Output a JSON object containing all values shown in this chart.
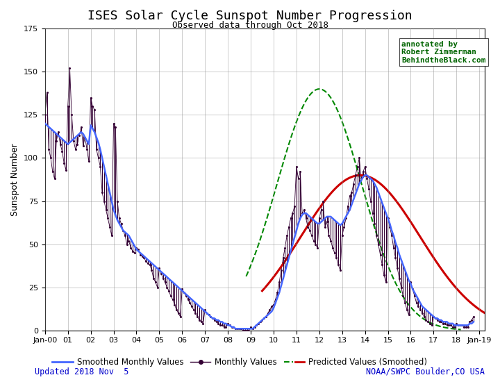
{
  "title": "ISES Solar Cycle Sunspot Number Progression",
  "subtitle": "Observed data through Oct 2018",
  "ylabel": "Sunspot Number",
  "ylim": [
    0,
    175
  ],
  "yticks": [
    0,
    25,
    50,
    75,
    100,
    125,
    150,
    175
  ],
  "annotation": "annotated by\nRobert Zimmerman\nBehindtheBlack.com",
  "annotation_color": "#006400",
  "footer_left": "Updated 2018 Nov  5",
  "footer_right": "NOAA/SWPC Boulder,CO USA",
  "footer_color": "#0000cc",
  "background_color": "#ffffff",
  "grid_color": "#888888",
  "smoothed_color": "#4466ff",
  "monthly_color": "#330033",
  "predicted_green_color": "#008800",
  "predicted_red_color": "#cc0000",
  "smoothed_linewidth": 1.8,
  "predicted_linewidth": 2.2,
  "title_fontsize": 13,
  "subtitle_fontsize": 9,
  "label_fontsize": 9,
  "tick_fontsize": 8,
  "x_start": 2000.0,
  "x_end": 2019.25,
  "xtick_years": [
    2000,
    2001,
    2002,
    2003,
    2004,
    2005,
    2006,
    2007,
    2008,
    2009,
    2010,
    2011,
    2012,
    2013,
    2014,
    2015,
    2016,
    2017,
    2018,
    2019
  ],
  "xtick_labels": [
    "Jan-00",
    "01",
    "02",
    "03",
    "04",
    "05",
    "06",
    "07",
    "08",
    "09",
    "10",
    "11",
    "12",
    "13",
    "14",
    "15",
    "16",
    "17",
    "18",
    "Jan-19"
  ],
  "smoothed_t": [
    2000.0,
    2000.083,
    2000.167,
    2000.25,
    2000.333,
    2000.417,
    2000.5,
    2000.583,
    2000.667,
    2000.75,
    2000.833,
    2000.917,
    2001.0,
    2001.083,
    2001.167,
    2001.25,
    2001.333,
    2001.417,
    2001.5,
    2001.583,
    2001.667,
    2001.75,
    2001.833,
    2001.917,
    2002.0,
    2002.083,
    2002.167,
    2002.25,
    2002.333,
    2002.417,
    2002.5,
    2002.583,
    2002.667,
    2002.75,
    2002.833,
    2002.917,
    2003.0,
    2003.083,
    2003.167,
    2003.25,
    2003.333,
    2003.417,
    2003.5,
    2003.583,
    2003.667,
    2003.75,
    2003.833,
    2003.917,
    2004.0,
    2004.083,
    2004.167,
    2004.25,
    2004.333,
    2004.417,
    2004.5,
    2004.583,
    2004.667,
    2004.75,
    2004.833,
    2004.917,
    2005.0,
    2005.083,
    2005.167,
    2005.25,
    2005.333,
    2005.417,
    2005.5,
    2005.583,
    2005.667,
    2005.75,
    2005.833,
    2005.917,
    2006.0,
    2006.083,
    2006.167,
    2006.25,
    2006.333,
    2006.417,
    2006.5,
    2006.583,
    2006.667,
    2006.75,
    2006.833,
    2006.917,
    2007.0,
    2007.083,
    2007.167,
    2007.25,
    2007.333,
    2007.417,
    2007.5,
    2007.583,
    2007.667,
    2007.75,
    2007.833,
    2007.917,
    2008.0,
    2008.083,
    2008.167,
    2008.25,
    2008.333,
    2008.417,
    2008.5,
    2008.583,
    2008.667,
    2008.75,
    2008.833,
    2008.917,
    2009.0,
    2009.083,
    2009.167,
    2009.25,
    2009.333,
    2009.417,
    2009.5,
    2009.583,
    2009.667,
    2009.75,
    2009.833,
    2009.917,
    2010.0,
    2010.083,
    2010.167,
    2010.25,
    2010.333,
    2010.417,
    2010.5,
    2010.583,
    2010.667,
    2010.75,
    2010.833,
    2010.917,
    2011.0,
    2011.083,
    2011.167,
    2011.25,
    2011.333,
    2011.417,
    2011.5,
    2011.583,
    2011.667,
    2011.75,
    2011.833,
    2011.917,
    2012.0,
    2012.083,
    2012.167,
    2012.25,
    2012.333,
    2012.417,
    2012.5,
    2012.583,
    2012.667,
    2012.75,
    2012.833,
    2012.917,
    2013.0,
    2013.083,
    2013.167,
    2013.25,
    2013.333,
    2013.417,
    2013.5,
    2013.583,
    2013.667,
    2013.75,
    2013.833,
    2013.917,
    2014.0,
    2014.083,
    2014.167,
    2014.25,
    2014.333,
    2014.417,
    2014.5,
    2014.583,
    2014.667,
    2014.75,
    2014.833,
    2014.917,
    2015.0,
    2015.083,
    2015.167,
    2015.25,
    2015.333,
    2015.417,
    2015.5,
    2015.583,
    2015.667,
    2015.75,
    2015.833,
    2015.917,
    2016.0,
    2016.083,
    2016.167,
    2016.25,
    2016.333,
    2016.417,
    2016.5,
    2016.583,
    2016.667,
    2016.75,
    2016.833,
    2016.917,
    2017.0,
    2017.083,
    2017.167,
    2017.25,
    2017.333,
    2017.417,
    2017.5,
    2017.583,
    2017.667,
    2017.75,
    2017.833,
    2017.917,
    2018.0,
    2018.083,
    2018.167,
    2018.25,
    2018.333,
    2018.417,
    2018.5,
    2018.583,
    2018.667,
    2018.75
  ],
  "smoothed_v": [
    120,
    119,
    118,
    117,
    116,
    115,
    114,
    113,
    112,
    111,
    110,
    109,
    108,
    109,
    110,
    111,
    112,
    113,
    114,
    115,
    114,
    112,
    110,
    108,
    119,
    117,
    115,
    112,
    109,
    105,
    100,
    95,
    90,
    85,
    80,
    75,
    70,
    67,
    64,
    62,
    60,
    58,
    57,
    56,
    55,
    53,
    51,
    49,
    47,
    46,
    45,
    44,
    43,
    42,
    41,
    40,
    39,
    38,
    37,
    36,
    35,
    34,
    33,
    32,
    31,
    30,
    29,
    28,
    27,
    26,
    25,
    24,
    23,
    22,
    21,
    20,
    19,
    18,
    17,
    16,
    15,
    14,
    13,
    12,
    11,
    10,
    9,
    8,
    7,
    7,
    6,
    6,
    5,
    5,
    4,
    4,
    3,
    3,
    2,
    2,
    1,
    1,
    1,
    1,
    1,
    1,
    1,
    1,
    1,
    1,
    2,
    3,
    4,
    5,
    6,
    7,
    8,
    9,
    10,
    11,
    13,
    16,
    19,
    22,
    26,
    30,
    34,
    38,
    42,
    46,
    50,
    54,
    58,
    62,
    65,
    67,
    68,
    68,
    67,
    66,
    65,
    64,
    63,
    62,
    62,
    63,
    64,
    65,
    66,
    66,
    66,
    65,
    64,
    63,
    62,
    61,
    62,
    64,
    66,
    68,
    70,
    73,
    76,
    79,
    82,
    85,
    87,
    89,
    90,
    90,
    89,
    88,
    87,
    85,
    83,
    80,
    77,
    74,
    71,
    68,
    65,
    62,
    58,
    55,
    51,
    48,
    44,
    41,
    38,
    35,
    32,
    29,
    27,
    24,
    22,
    20,
    18,
    16,
    14,
    13,
    12,
    11,
    10,
    9,
    8,
    7,
    7,
    6,
    6,
    5,
    5,
    5,
    4,
    4,
    4,
    3,
    3,
    3,
    3,
    3,
    3,
    3,
    3,
    4,
    4,
    5
  ],
  "monthly_t": [
    2000.0,
    2000.083,
    2000.167,
    2000.25,
    2000.333,
    2000.417,
    2000.5,
    2000.583,
    2000.667,
    2000.75,
    2000.833,
    2000.917,
    2001.0,
    2001.083,
    2001.167,
    2001.25,
    2001.333,
    2001.417,
    2001.5,
    2001.583,
    2001.667,
    2001.75,
    2001.833,
    2001.917,
    2002.0,
    2002.083,
    2002.167,
    2002.25,
    2002.333,
    2002.417,
    2002.5,
    2002.583,
    2002.667,
    2002.75,
    2002.833,
    2002.917,
    2003.0,
    2003.083,
    2003.167,
    2003.25,
    2003.333,
    2003.417,
    2003.5,
    2003.583,
    2003.667,
    2003.75,
    2003.833,
    2003.917,
    2004.0,
    2004.083,
    2004.167,
    2004.25,
    2004.333,
    2004.417,
    2004.5,
    2004.583,
    2004.667,
    2004.75,
    2004.833,
    2004.917,
    2005.0,
    2005.083,
    2005.167,
    2005.25,
    2005.333,
    2005.417,
    2005.5,
    2005.583,
    2005.667,
    2005.75,
    2005.833,
    2005.917,
    2006.0,
    2006.083,
    2006.167,
    2006.25,
    2006.333,
    2006.417,
    2006.5,
    2006.583,
    2006.667,
    2006.75,
    2006.833,
    2006.917,
    2007.0,
    2007.083,
    2007.167,
    2007.25,
    2007.333,
    2007.417,
    2007.5,
    2007.583,
    2007.667,
    2007.75,
    2007.833,
    2007.917,
    2008.0,
    2008.083,
    2008.167,
    2008.25,
    2008.333,
    2008.417,
    2008.5,
    2008.583,
    2008.667,
    2008.75,
    2008.833,
    2008.917,
    2009.0,
    2009.083,
    2009.167,
    2009.25,
    2009.333,
    2009.417,
    2009.5,
    2009.583,
    2009.667,
    2009.75,
    2009.833,
    2009.917,
    2010.0,
    2010.083,
    2010.167,
    2010.25,
    2010.333,
    2010.417,
    2010.5,
    2010.583,
    2010.667,
    2010.75,
    2010.833,
    2010.917,
    2011.0,
    2011.083,
    2011.167,
    2011.25,
    2011.333,
    2011.417,
    2011.5,
    2011.583,
    2011.667,
    2011.75,
    2011.833,
    2011.917,
    2012.0,
    2012.083,
    2012.167,
    2012.25,
    2012.333,
    2012.417,
    2012.5,
    2012.583,
    2012.667,
    2012.75,
    2012.833,
    2012.917,
    2013.0,
    2013.083,
    2013.167,
    2013.25,
    2013.333,
    2013.417,
    2013.5,
    2013.583,
    2013.667,
    2013.75,
    2013.833,
    2013.917,
    2014.0,
    2014.083,
    2014.167,
    2014.25,
    2014.333,
    2014.417,
    2014.5,
    2014.583,
    2014.667,
    2014.75,
    2014.833,
    2014.917,
    2015.0,
    2015.083,
    2015.167,
    2015.25,
    2015.333,
    2015.417,
    2015.5,
    2015.583,
    2015.667,
    2015.75,
    2015.833,
    2015.917,
    2016.0,
    2016.083,
    2016.167,
    2016.25,
    2016.333,
    2016.417,
    2016.5,
    2016.583,
    2016.667,
    2016.75,
    2016.833,
    2016.917,
    2017.0,
    2017.083,
    2017.167,
    2017.25,
    2017.333,
    2017.417,
    2017.5,
    2017.583,
    2017.667,
    2017.75,
    2017.833,
    2017.917,
    2018.0,
    2018.083,
    2018.167,
    2018.25,
    2018.333,
    2018.417,
    2018.5,
    2018.583,
    2018.667,
    2018.75
  ],
  "monthly_v": [
    125,
    138,
    105,
    100,
    92,
    88,
    110,
    115,
    108,
    104,
    97,
    93,
    130,
    152,
    125,
    110,
    105,
    108,
    113,
    118,
    107,
    112,
    105,
    98,
    135,
    130,
    128,
    105,
    100,
    95,
    80,
    75,
    70,
    65,
    60,
    55,
    120,
    118,
    75,
    65,
    62,
    58,
    55,
    50,
    52,
    48,
    46,
    45,
    48,
    47,
    44,
    43,
    42,
    40,
    39,
    38,
    35,
    30,
    28,
    25,
    36,
    33,
    30,
    28,
    25,
    23,
    20,
    18,
    15,
    12,
    10,
    8,
    24,
    22,
    20,
    18,
    16,
    14,
    12,
    10,
    8,
    6,
    5,
    4,
    12,
    10,
    9,
    8,
    7,
    6,
    5,
    4,
    3,
    3,
    2,
    2,
    4,
    3,
    2,
    2,
    1,
    1,
    1,
    1,
    0,
    0,
    0,
    0,
    2,
    1,
    2,
    3,
    4,
    5,
    6,
    7,
    8,
    10,
    12,
    14,
    15,
    18,
    22,
    28,
    35,
    42,
    48,
    55,
    60,
    65,
    68,
    72,
    95,
    88,
    92,
    68,
    70,
    65,
    60,
    58,
    55,
    52,
    50,
    48,
    65,
    70,
    75,
    60,
    63,
    55,
    52,
    48,
    45,
    42,
    38,
    35,
    55,
    60,
    65,
    72,
    78,
    80,
    85,
    90,
    95,
    100,
    88,
    92,
    95,
    88,
    82,
    75,
    68,
    62,
    55,
    50,
    44,
    38,
    32,
    28,
    65,
    60,
    55,
    48,
    42,
    36,
    30,
    25,
    20,
    16,
    12,
    9,
    28,
    24,
    20,
    16,
    14,
    12,
    10,
    8,
    6,
    5,
    4,
    3,
    8,
    7,
    6,
    5,
    5,
    4,
    4,
    3,
    3,
    3,
    2,
    2,
    4,
    3,
    3,
    3,
    2,
    2,
    2,
    5,
    6,
    8
  ]
}
